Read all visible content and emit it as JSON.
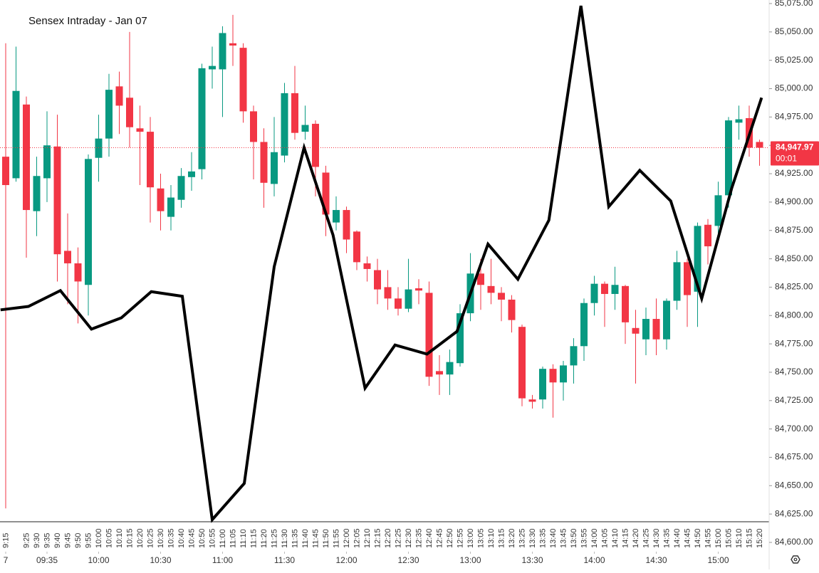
{
  "chart_data": {
    "type": "candlestick",
    "title": "Sensex Intraday - Jan 07",
    "categories": [
      "9:15",
      null,
      "9:25",
      "9:30",
      "9:35",
      "9:40",
      "9:45",
      "9:50",
      "9:55",
      "10:00",
      "10:05",
      "10:10",
      "10:15",
      "10:20",
      "10:25",
      "10:30",
      "10:35",
      "10:40",
      "10:45",
      "10:50",
      "10:55",
      "11:00",
      "11:05",
      "11:10",
      "11:15",
      "11:20",
      "11:25",
      "11:30",
      "11:35",
      "11:40",
      "11:45",
      "11:50",
      "11:55",
      "12:00",
      "12:05",
      "12:10",
      "12:15",
      "12:20",
      "12:25",
      "12:30",
      "12:35",
      "12:40",
      "12:45",
      "12:50",
      "12:55",
      "13:00",
      "13:05",
      "13:10",
      "13:15",
      "13:20",
      "13:25",
      "13:30",
      "13:35",
      "13:40",
      "13:45",
      "13:50",
      "13:55",
      "14:00",
      "14:05",
      "14:10",
      "14:15",
      "14:20",
      "14:25",
      "14:30",
      "14:35",
      "14:40",
      "14:45",
      "14:50",
      "14:55",
      "15:00",
      "15:05",
      "15:10",
      "15:15",
      "15:20"
    ],
    "open": [
      84940,
      84921,
      84986,
      84892,
      84921,
      84949,
      84857,
      84846,
      84827,
      84939,
      84956,
      85002,
      84992,
      84965,
      84962,
      84912,
      84887,
      84902,
      84922,
      84929,
      85017,
      85017,
      85040,
      85036,
      84980,
      84953,
      84916,
      84941,
      84996,
      84962,
      84969,
      84926,
      84882,
      84893,
      84874,
      84846,
      84840,
      84825,
      84815,
      84806,
      84824,
      84820,
      84751,
      84748,
      84758,
      84802,
      84837,
      84826,
      84820,
      84814,
      84790,
      84726,
      84726,
      84753,
      84741,
      84756,
      84773,
      84811,
      84828,
      84819,
      84826,
      84789,
      84779,
      84797,
      84779,
      84813,
      84847,
      84821,
      84880,
      84879,
      84906,
      84970,
      84974,
      84953
    ],
    "high": [
      85040,
      85037,
      84993,
      84940,
      84980,
      84977,
      84890,
      84860,
      84942,
      84977,
      85013,
      85015,
      85050,
      84985,
      84975,
      84925,
      84915,
      84930,
      84944,
      85022,
      85037,
      85055,
      85065,
      85040,
      84985,
      84965,
      84975,
      85005,
      85020,
      84985,
      84972,
      84932,
      84905,
      84896,
      84875,
      84852,
      84850,
      84840,
      84825,
      84850,
      84832,
      84830,
      84765,
      84770,
      84810,
      84855,
      84850,
      84850,
      84825,
      84818,
      84792,
      84730,
      84755,
      84757,
      84760,
      84780,
      84815,
      84835,
      84830,
      84843,
      84827,
      84805,
      84807,
      84815,
      84815,
      84857,
      84850,
      84882,
      84885,
      84918,
      84975,
      84985,
      84985,
      84955
    ],
    "low": [
      84630,
      84918,
      84851,
      84870,
      84900,
      84830,
      84810,
      84793,
      84800,
      84918,
      84940,
      84960,
      84948,
      84915,
      84882,
      84875,
      84875,
      84895,
      84910,
      84920,
      85000,
      84975,
      85020,
      84970,
      84920,
      84895,
      84905,
      84935,
      84955,
      84955,
      84905,
      84870,
      84875,
      84855,
      84840,
      84830,
      84810,
      84805,
      84800,
      84803,
      84810,
      84738,
      84730,
      84730,
      84755,
      84795,
      84805,
      84810,
      84795,
      84785,
      84720,
      84718,
      84718,
      84710,
      84725,
      84740,
      84760,
      84800,
      84790,
      84805,
      84775,
      84740,
      84765,
      84765,
      84770,
      84805,
      84790,
      84790,
      84845,
      84870,
      84895,
      84955,
      84940,
      84932
    ],
    "close": [
      84915,
      84998,
      84893,
      84923,
      84950,
      84854,
      84846,
      84830,
      84938,
      84956,
      84999,
      84985,
      84966,
      84962,
      84913,
      84892,
      84904,
      84923,
      84927,
      85018,
      85020,
      85049,
      85038,
      84980,
      84953,
      84917,
      84944,
      84996,
      84961,
      84968,
      84931,
      84889,
      84893,
      84867,
      84847,
      84841,
      84823,
      84815,
      84806,
      84823,
      84822,
      84746,
      84748,
      84759,
      84802,
      84837,
      84827,
      84820,
      84814,
      84796,
      84727,
      84724,
      84753,
      84741,
      84756,
      84773,
      84811,
      84828,
      84819,
      84827,
      84794,
      84784,
      84797,
      84779,
      84813,
      84847,
      84818,
      84879,
      84861,
      84906,
      84972,
      84973,
      84948,
      84948
    ],
    "up_color": "#089981",
    "down_color": "#f23645",
    "overlay": {
      "type": "line",
      "color": "#000000",
      "x": [
        -0.5,
        2.2,
        5.3,
        8.3,
        11.2,
        14.1,
        17.1,
        20,
        23.1,
        26,
        28.9,
        31.7,
        34.8,
        37.7,
        40.8,
        43.7,
        46.7,
        49.6,
        52.6,
        55.7,
        58.4,
        61.4,
        64.4,
        67.4,
        70.3,
        73.2
      ],
      "values": [
        84805,
        84808,
        84822,
        84788,
        84798,
        84821,
        84817,
        84620,
        84652,
        84843,
        84948,
        84871,
        84736,
        84774,
        84766,
        84786,
        84863,
        84832,
        84884,
        85073,
        84896,
        84928,
        84901,
        84815,
        84912,
        84992
      ]
    },
    "last_price": {
      "value": 84947.97,
      "label": "84,947.97"
    },
    "countdown": "00:01",
    "xlim": [
      -0.55,
      74
    ],
    "xticks": [
      {
        "value": 0,
        "label": "7"
      },
      {
        "value": 4,
        "label": "09:35"
      },
      {
        "value": 9,
        "label": "10:00"
      },
      {
        "value": 15,
        "label": "10:30"
      },
      {
        "value": 21,
        "label": "11:00"
      },
      {
        "value": 27,
        "label": "11:30"
      },
      {
        "value": 33,
        "label": "12:00"
      },
      {
        "value": 39,
        "label": "12:30"
      },
      {
        "value": 45,
        "label": "13:00"
      },
      {
        "value": 51,
        "label": "13:30"
      },
      {
        "value": 57,
        "label": "14:00"
      },
      {
        "value": 63,
        "label": "14:30"
      },
      {
        "value": 69,
        "label": "15:00"
      }
    ],
    "ylim": [
      84600,
      85075
    ],
    "yticks": [
      {
        "value": 84600,
        "label": "84,600.00"
      },
      {
        "value": 84625,
        "label": "84,625.00"
      },
      {
        "value": 84650,
        "label": "84,650.00"
      },
      {
        "value": 84675,
        "label": "84,675.00"
      },
      {
        "value": 84700,
        "label": "84,700.00"
      },
      {
        "value": 84725,
        "label": "84,725.00"
      },
      {
        "value": 84750,
        "label": "84,750.00"
      },
      {
        "value": 84775,
        "label": "84,775.00"
      },
      {
        "value": 84800,
        "label": "84,800.00"
      },
      {
        "value": 84825,
        "label": "84,825.00"
      },
      {
        "value": 84850,
        "label": "84,850.00"
      },
      {
        "value": 84875,
        "label": "84,875.00"
      },
      {
        "value": 84900,
        "label": "84,900.00"
      },
      {
        "value": 84925,
        "label": "84,925.00"
      },
      {
        "value": 84950,
        "label": "84,950.00"
      },
      {
        "value": 84975,
        "label": "84,975.00"
      },
      {
        "value": 85000,
        "label": "85,000.00"
      },
      {
        "value": 85025,
        "label": "85,025.00"
      },
      {
        "value": 85050,
        "label": "85,050.00"
      },
      {
        "value": 85075,
        "label": "85,075.00"
      }
    ]
  }
}
